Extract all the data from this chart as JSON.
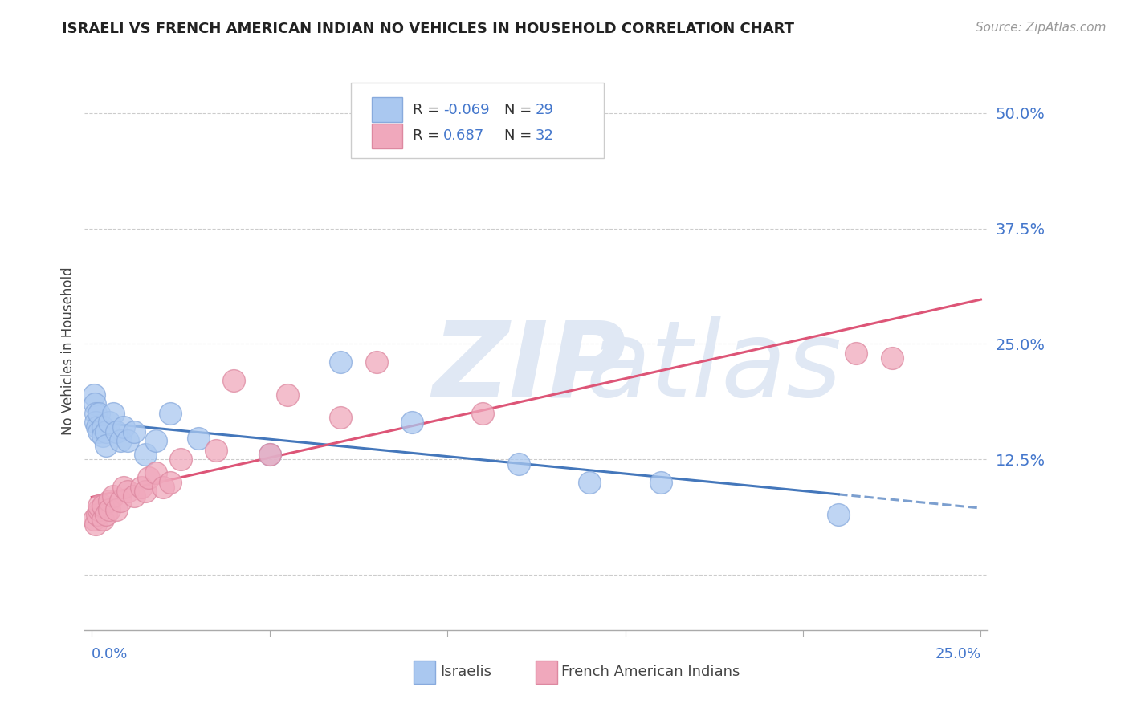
{
  "title": "ISRAELI VS FRENCH AMERICAN INDIAN NO VEHICLES IN HOUSEHOLD CORRELATION CHART",
  "source": "Source: ZipAtlas.com",
  "ylabel": "No Vehicles in Household",
  "color_israeli": "#aac8f0",
  "color_french": "#f0a8bc",
  "color_edge_israeli": "#88aadd",
  "color_edge_french": "#dd88a0",
  "color_line_israeli": "#4477bb",
  "color_line_french": "#dd5577",
  "r_israeli": "-0.069",
  "n_israeli": "29",
  "r_french": "0.687",
  "n_french": "32",
  "xlim": [
    -0.002,
    0.252
  ],
  "ylim": [
    -0.06,
    0.545
  ],
  "ytick_vals": [
    0.0,
    0.125,
    0.25,
    0.375,
    0.5
  ],
  "ytick_labels": [
    "",
    "12.5%",
    "25.0%",
    "37.5%",
    "50.0%"
  ],
  "xtick_vals": [
    0.0,
    0.05,
    0.1,
    0.15,
    0.2,
    0.25
  ],
  "israelis_x": [
    0.0005,
    0.0008,
    0.001,
    0.001,
    0.0015,
    0.002,
    0.002,
    0.003,
    0.003,
    0.004,
    0.004,
    0.005,
    0.006,
    0.007,
    0.008,
    0.009,
    0.01,
    0.012,
    0.015,
    0.018,
    0.022,
    0.03,
    0.05,
    0.07,
    0.09,
    0.12,
    0.14,
    0.16,
    0.21
  ],
  "israelis_y": [
    0.195,
    0.185,
    0.175,
    0.165,
    0.16,
    0.175,
    0.155,
    0.16,
    0.15,
    0.155,
    0.14,
    0.165,
    0.175,
    0.155,
    0.145,
    0.16,
    0.145,
    0.155,
    0.13,
    0.145,
    0.175,
    0.148,
    0.13,
    0.23,
    0.165,
    0.12,
    0.1,
    0.1,
    0.065
  ],
  "french_x": [
    0.0005,
    0.001,
    0.0015,
    0.002,
    0.002,
    0.003,
    0.003,
    0.004,
    0.005,
    0.005,
    0.006,
    0.007,
    0.008,
    0.009,
    0.01,
    0.012,
    0.014,
    0.015,
    0.016,
    0.018,
    0.02,
    0.022,
    0.025,
    0.035,
    0.04,
    0.05,
    0.055,
    0.07,
    0.08,
    0.11,
    0.215,
    0.225
  ],
  "french_y": [
    0.06,
    0.055,
    0.065,
    0.07,
    0.075,
    0.06,
    0.075,
    0.065,
    0.08,
    0.07,
    0.085,
    0.07,
    0.08,
    0.095,
    0.09,
    0.085,
    0.095,
    0.09,
    0.105,
    0.11,
    0.095,
    0.1,
    0.125,
    0.135,
    0.21,
    0.13,
    0.195,
    0.17,
    0.23,
    0.175,
    0.24,
    0.235
  ]
}
